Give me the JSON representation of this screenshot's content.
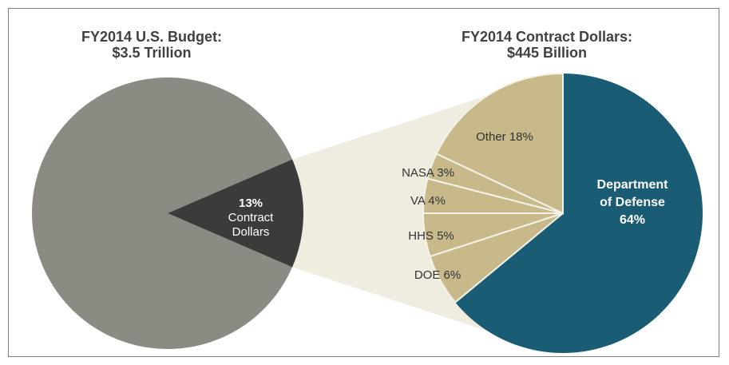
{
  "colors": {
    "budget_gray": "#8c8b83",
    "contract_dark": "#3b3b3b",
    "funnel": "#efede0",
    "khaki": "#c8b98b",
    "defense_teal": "#1b5c75",
    "title_text": "#404040"
  },
  "chart_data": [
    {
      "type": "pie",
      "title_line1": "FY2014 U.S. Budget:",
      "title_line2": "$3.5 Trillion",
      "slices": [
        {
          "label_lines": [
            "13%",
            "Contract",
            "Dollars"
          ],
          "value": 13,
          "color": "#3b3b3b"
        },
        {
          "label_lines": [],
          "value": 87,
          "color": "#8c8b83"
        }
      ]
    },
    {
      "type": "pie",
      "title_line1": "FY2014 Contract Dollars:",
      "title_line2": "$445 Billion",
      "slices": [
        {
          "label_lines": [
            "Department",
            "of Defense",
            "64%"
          ],
          "value": 64,
          "color": "#1b5c75"
        },
        {
          "label_lines": [
            "DOE 6%"
          ],
          "value": 6,
          "color": "#c8b98b"
        },
        {
          "label_lines": [
            "HHS 5%"
          ],
          "value": 5,
          "color": "#c8b98b"
        },
        {
          "label_lines": [
            "VA 4%"
          ],
          "value": 4,
          "color": "#c8b98b"
        },
        {
          "label_lines": [
            "NASA 3%"
          ],
          "value": 3,
          "color": "#c8b98b"
        },
        {
          "label_lines": [
            "Other 18%"
          ],
          "value": 18,
          "color": "#c8b98b"
        }
      ]
    }
  ]
}
